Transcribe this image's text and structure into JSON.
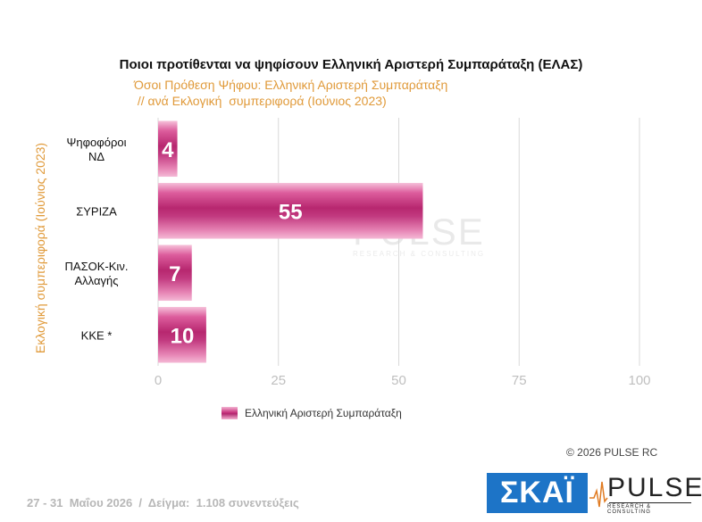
{
  "header": {
    "title": "Ποιοι προτίθενται να ψηφίσουν Ελληνική Αριστερή Συμπαράταξη (ΕΛΑΣ)",
    "subtitle_line1": "Όσοι Πρόθεση Ψήφου: Ελληνική Αριστερή Συμπαράταξη",
    "subtitle_line2": " // ανά Εκλογική  συμπεριφορά (Ιούνιος 2023)"
  },
  "chart_data": {
    "type": "bar",
    "orientation": "horizontal",
    "categories": [
      [
        "Ψηφοφόροι",
        "ΝΔ"
      ],
      [
        "ΣΥΡΙΖΑ"
      ],
      [
        "ΠΑΣΟΚ-Κιν.",
        "Αλλαγής"
      ],
      [
        "ΚΚΕ *"
      ]
    ],
    "series": [
      {
        "name": "Ελληνική Αριστερή Συμπαράταξη",
        "values": [
          4,
          55,
          7,
          10
        ],
        "color": "#c8347d"
      }
    ],
    "xlim": [
      0,
      100
    ],
    "xticks": [
      "0",
      "25",
      "50",
      "75",
      "100"
    ],
    "ylabel": "Εκλογική  συμπεριφορά (Ιούνιος 2023)",
    "grid": true,
    "legend": "bottom"
  },
  "watermark": {
    "word": "PULSE",
    "tagline": "RESEARCH & CONSULTING"
  },
  "footer": {
    "copyright": "©  2026  PULSE RC",
    "note": "27 - 31  Μαΐου 2026  /  Δείγμα:  1.108 συνεντεύξεις",
    "skai_logo": "ΣΚΑΪ",
    "pulse_logo": "PULSE",
    "pulse_tagline": "RESEARCH & CONSULTING"
  }
}
